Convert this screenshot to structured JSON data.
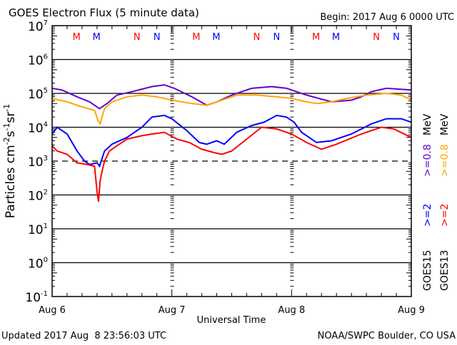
{
  "chart_data": {
    "type": "line",
    "title": "GOES Electron Flux (5 minute data)",
    "begin_label": "Begin: 2017 Aug 6 0000 UTC",
    "xlabel": "Universal Time",
    "ylabel": "Particles cm-2s-1sr-1",
    "ylabel_parts": {
      "base": "Particles cm",
      "e1": "-2",
      "s": "s",
      "e2": "-1",
      "sr": "sr",
      "e3": "-1"
    },
    "yscale": "log",
    "ylim_exp": [
      -1,
      7
    ],
    "y_ticks": [
      {
        "base": "10",
        "exp": "7"
      },
      {
        "base": "10",
        "exp": "6"
      },
      {
        "base": "10",
        "exp": "5"
      },
      {
        "base": "10",
        "exp": "4"
      },
      {
        "base": "10",
        "exp": "3"
      },
      {
        "base": "10",
        "exp": "2"
      },
      {
        "base": "10",
        "exp": "1"
      },
      {
        "base": "10",
        "exp": "0"
      },
      {
        "base": "10",
        "exp": "-1"
      }
    ],
    "dashed_threshold_exp": 3,
    "xlim_hours": [
      0,
      72
    ],
    "x_ticks": [
      {
        "hour": 0,
        "label": "Aug 6"
      },
      {
        "hour": 24,
        "label": "Aug 7"
      },
      {
        "hour": 48,
        "label": "Aug 8"
      },
      {
        "hour": 72,
        "label": "Aug 9"
      }
    ],
    "markers": [
      {
        "hour": 4.9,
        "label": "M",
        "color": "#ff0000"
      },
      {
        "hour": 8.9,
        "label": "M",
        "color": "#0000ff"
      },
      {
        "hour": 17.0,
        "label": "N",
        "color": "#ff0000"
      },
      {
        "hour": 21.0,
        "label": "N",
        "color": "#0000ff"
      },
      {
        "hour": 28.9,
        "label": "M",
        "color": "#ff0000"
      },
      {
        "hour": 32.9,
        "label": "M",
        "color": "#0000ff"
      },
      {
        "hour": 41.0,
        "label": "N",
        "color": "#ff0000"
      },
      {
        "hour": 45.0,
        "label": "N",
        "color": "#0000ff"
      },
      {
        "hour": 52.9,
        "label": "M",
        "color": "#ff0000"
      },
      {
        "hour": 56.9,
        "label": "M",
        "color": "#0000ff"
      },
      {
        "hour": 65.0,
        "label": "N",
        "color": "#ff0000"
      },
      {
        "hour": 69.0,
        "label": "N",
        "color": "#0000ff"
      }
    ],
    "series": [
      {
        "name": "GOES15 >=0.8 MeV",
        "color": "#6600cc",
        "hours": [
          0,
          2,
          5,
          7.5,
          9.5,
          11,
          13,
          16,
          20,
          22.5,
          24.5,
          28,
          31,
          33,
          36,
          40,
          44,
          47,
          51,
          56,
          60,
          62,
          64,
          67,
          72
        ],
        "log_values": [
          5.15,
          5.1,
          4.9,
          4.75,
          4.55,
          4.7,
          4.95,
          5.05,
          5.2,
          5.25,
          5.15,
          4.9,
          4.65,
          4.75,
          4.95,
          5.15,
          5.2,
          5.15,
          4.95,
          4.75,
          4.8,
          4.9,
          5.05,
          5.15,
          5.1
        ]
      },
      {
        "name": "GOES13 >=0.8 MeV",
        "color": "#ffa500",
        "hours": [
          0,
          3,
          6,
          8.5,
          9.2,
          9.6,
          10.5,
          12,
          15,
          18,
          21,
          24,
          28,
          31,
          34,
          37,
          41,
          45,
          48,
          51,
          53,
          56,
          59,
          63,
          67,
          70,
          72
        ],
        "log_values": [
          4.85,
          4.75,
          4.6,
          4.5,
          4.2,
          4.1,
          4.55,
          4.75,
          4.9,
          4.95,
          4.9,
          4.8,
          4.7,
          4.65,
          4.8,
          4.95,
          4.95,
          4.9,
          4.85,
          4.75,
          4.7,
          4.75,
          4.85,
          4.95,
          5.0,
          4.95,
          4.8
        ]
      },
      {
        "name": "GOES15 >=2 MeV",
        "color": "#0000ff",
        "hours": [
          0,
          1,
          3,
          5,
          6.5,
          7.5,
          9,
          9.5,
          10.5,
          12,
          15,
          18,
          20,
          22.5,
          24,
          27,
          29.5,
          31,
          33,
          34.5,
          37,
          40,
          42.5,
          45,
          47,
          48.5,
          50,
          53,
          56,
          60,
          64,
          67,
          70,
          72
        ],
        "log_values": [
          3.8,
          4.0,
          3.8,
          3.3,
          3.0,
          2.9,
          2.95,
          2.85,
          3.3,
          3.5,
          3.7,
          4.0,
          4.3,
          4.35,
          4.25,
          3.9,
          3.55,
          3.5,
          3.6,
          3.5,
          3.85,
          4.05,
          4.15,
          4.35,
          4.3,
          4.15,
          3.85,
          3.55,
          3.6,
          3.8,
          4.1,
          4.25,
          4.25,
          4.15
        ]
      },
      {
        "name": "GOES13 >=2 MeV",
        "color": "#ff0000",
        "hours": [
          0,
          1,
          3,
          5,
          7,
          8.5,
          9,
          9.3,
          9.6,
          10,
          10.5,
          11.5,
          13,
          15,
          18,
          20,
          22.5,
          25,
          27.5,
          30,
          32.5,
          34,
          36,
          39,
          42,
          45,
          48,
          51,
          54,
          57,
          62,
          66,
          68.5,
          72
        ],
        "log_values": [
          3.45,
          3.3,
          3.2,
          2.95,
          2.9,
          2.85,
          2.1,
          1.8,
          2.4,
          2.7,
          3.0,
          3.3,
          3.45,
          3.65,
          3.75,
          3.8,
          3.85,
          3.65,
          3.55,
          3.35,
          3.25,
          3.2,
          3.3,
          3.65,
          4.0,
          3.95,
          3.8,
          3.55,
          3.35,
          3.5,
          3.8,
          4.0,
          3.95,
          3.7
        ]
      }
    ],
    "legend": {
      "placement": "right",
      "columns": [
        {
          "satellite": "GOES15",
          "high": ">=2",
          "low": ">=0.8",
          "unit": "MeV",
          "high_color": "#0000ff",
          "low_color": "#6600cc"
        },
        {
          "satellite": "GOES13",
          "high": ">=2",
          "low": ">=0.8",
          "unit": "MeV",
          "high_color": "#ff0000",
          "low_color": "#ffa500"
        }
      ]
    },
    "grid": true
  },
  "footer": {
    "updated": "Updated 2017 Aug  8 23:56:03 UTC",
    "credit": "NOAA/SWPC Boulder, CO USA"
  }
}
